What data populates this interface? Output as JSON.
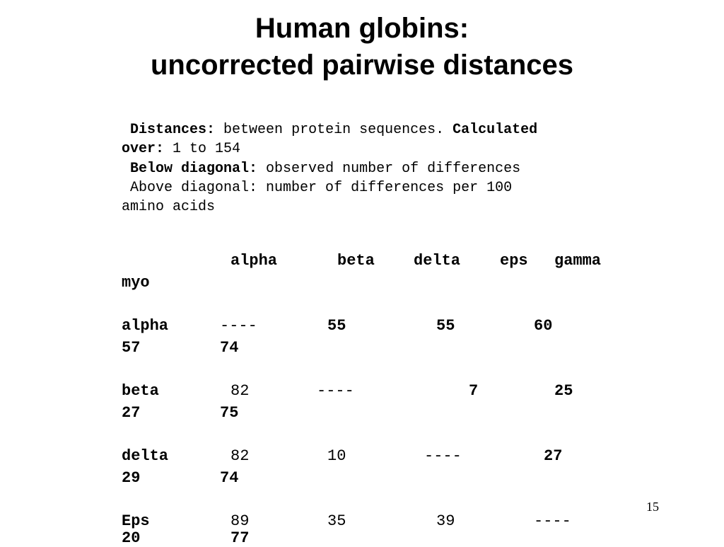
{
  "slide": {
    "title_line1": "Human globins:",
    "title_line2": "uncorrected pairwise distances",
    "page_number": "15"
  },
  "description": {
    "distances_label": "Distances:",
    "distances_text": " between protein sequences. ",
    "calculated_label": "Calculated",
    "over_label": "over:",
    "over_text": " 1 to 154",
    "below_label": "Below diagonal:",
    "below_text": " observed number of differences",
    "above_text_line1": "Above diagonal: number of differences per 100",
    "above_text_line2": "amino acids"
  },
  "table": {
    "columns": [
      "alpha",
      "beta",
      "delta",
      "eps",
      "gamma",
      "myo"
    ],
    "rows": [
      {
        "label": "alpha",
        "cells": [
          "----",
          "55",
          "55",
          "60"
        ],
        "wrap": [
          "57",
          "74"
        ]
      },
      {
        "label": "beta",
        "cells": [
          "82",
          "----",
          "7",
          "25"
        ],
        "wrap": [
          "27",
          "75"
        ]
      },
      {
        "label": "delta",
        "cells": [
          "82",
          "10",
          "----",
          "27"
        ],
        "wrap": [
          "29",
          "74"
        ]
      },
      {
        "label": "Eps",
        "cells": [
          "89",
          "35",
          "39",
          "----"
        ],
        "wrap": [
          "20",
          "77"
        ]
      }
    ]
  }
}
